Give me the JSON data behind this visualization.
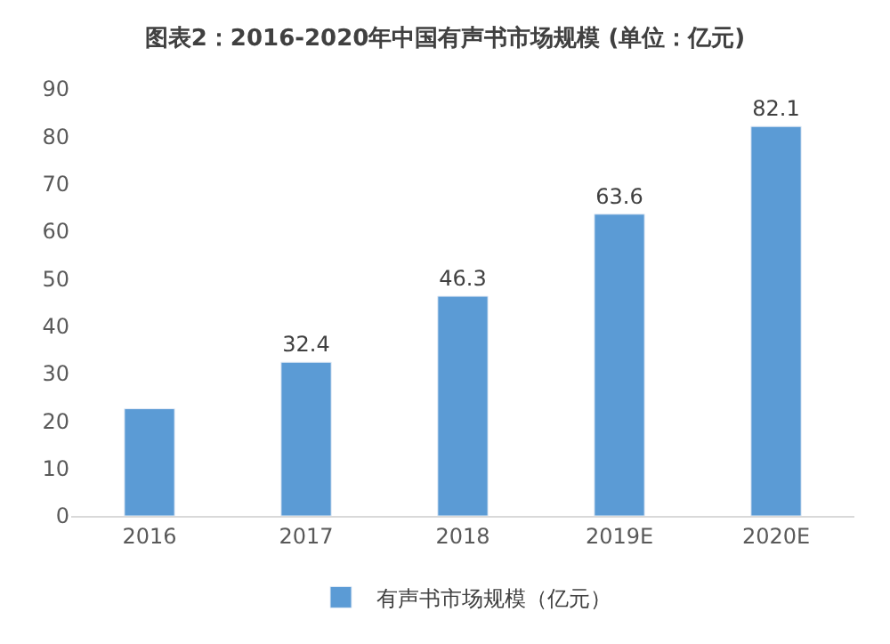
{
  "chart_data": {
    "type": "bar",
    "title": "图表2：2016-2020年中国有声书市场规模 (单位：亿元)",
    "categories": [
      "2016",
      "2017",
      "2018",
      "2019E",
      "2020E"
    ],
    "series": [
      {
        "name": "有声书市场规模（亿元）",
        "color": "#5b9bd5",
        "values": [
          22.6,
          32.4,
          46.3,
          63.6,
          82.1
        ],
        "value_labels": [
          null,
          "32.4",
          "46.3",
          "63.6",
          "82.1"
        ]
      }
    ],
    "ylim": [
      0,
      90
    ],
    "yticks": [
      0,
      10,
      20,
      30,
      40,
      50,
      60,
      70,
      80,
      90
    ],
    "grid": false,
    "legend": "bottom"
  }
}
